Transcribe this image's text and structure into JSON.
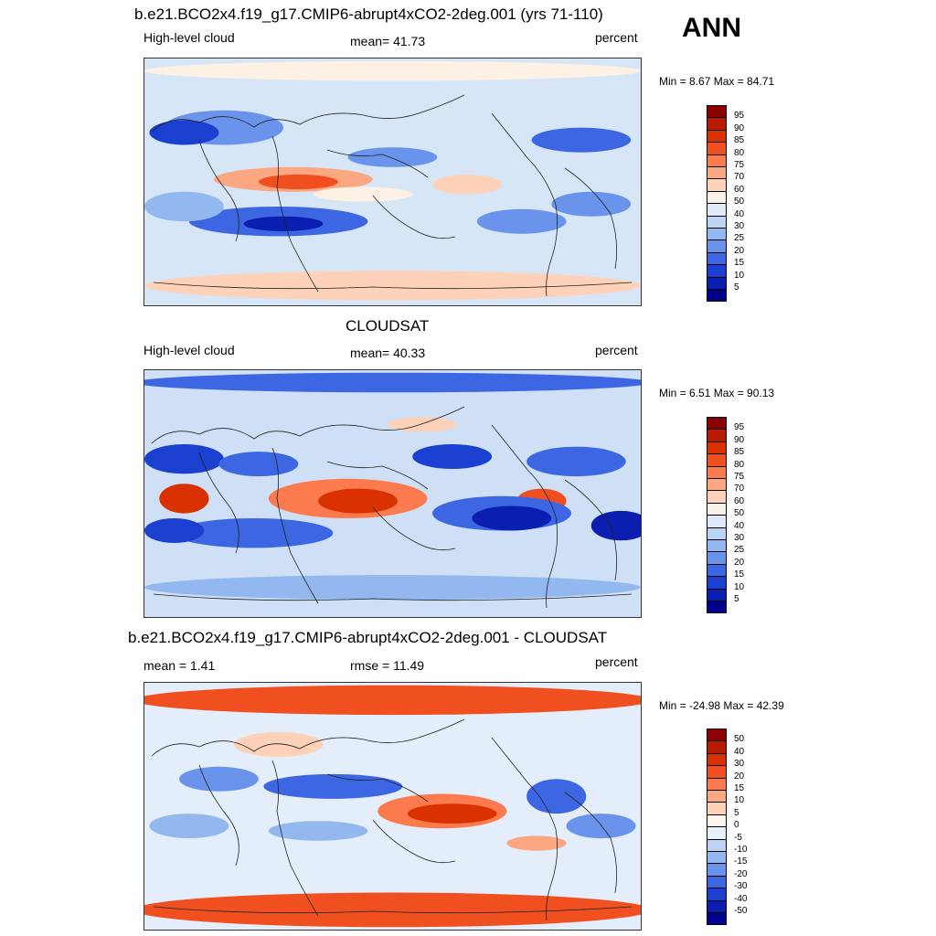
{
  "season": "ANN",
  "panels": [
    {
      "title": "b.e21.BCO2x4.f19_g17.CMIP6-abrupt4xCO2-2deg.001 (yrs 71-110)",
      "left_label": "High-level cloud",
      "center_label": "mean=  41.73",
      "right_label": "percent",
      "min_max": "Min =   8.67 Max =  84.71",
      "colorbar_labels": [
        "95",
        "90",
        "85",
        "80",
        "75",
        "70",
        "60",
        "50",
        "40",
        "30",
        "25",
        "20",
        "15",
        "10",
        "5"
      ],
      "colorbar_colors": [
        "#8b0000",
        "#b71c00",
        "#d93200",
        "#f05020",
        "#fb7b4f",
        "#fba882",
        "#fdd2b8",
        "#fdf0e4",
        "#dfeaf8",
        "#bdd5f4",
        "#93b8f0",
        "#6a94ec",
        "#3d66e3",
        "#1b3fcf",
        "#0a1fb0",
        "#00008b"
      ],
      "background": "#d7e6f7"
    },
    {
      "title": "CLOUDSAT",
      "left_label": "High-level cloud",
      "center_label": "mean=  40.33",
      "right_label": "percent",
      "min_max": "Min =   6.51 Max =  90.13",
      "colorbar_labels": [
        "95",
        "90",
        "85",
        "80",
        "75",
        "70",
        "60",
        "50",
        "40",
        "30",
        "25",
        "20",
        "15",
        "10",
        "5"
      ],
      "colorbar_colors": [
        "#8b0000",
        "#b71c00",
        "#d93200",
        "#f05020",
        "#fb7b4f",
        "#fba882",
        "#fdd2b8",
        "#fdf0e4",
        "#dfeaf8",
        "#bdd5f4",
        "#93b8f0",
        "#6a94ec",
        "#3d66e3",
        "#1b3fcf",
        "#0a1fb0",
        "#00008b"
      ],
      "background": "#cfe0f6"
    },
    {
      "title": "b.e21.BCO2x4.f19_g17.CMIP6-abrupt4xCO2-2deg.001 - CLOUDSAT",
      "left_label": "mean =   1.41",
      "center_label": "rmse =  11.49",
      "right_label": "percent",
      "min_max": "Min = -24.98 Max =  42.39",
      "colorbar_labels": [
        "50",
        "40",
        "30",
        "20",
        "15",
        "10",
        "5",
        "0",
        "-5",
        "-10",
        "-15",
        "-20",
        "-30",
        "-40",
        "-50"
      ],
      "colorbar_colors": [
        "#8b0000",
        "#b71c00",
        "#d93200",
        "#f05020",
        "#fb7b4f",
        "#fba882",
        "#fdd2b8",
        "#fdf5ec",
        "#e8f0fb",
        "#bdd5f4",
        "#93b8f0",
        "#6a94ec",
        "#3d66e3",
        "#1b3fcf",
        "#0a1fb0",
        "#00008b"
      ],
      "background": "#e4eefb"
    }
  ]
}
